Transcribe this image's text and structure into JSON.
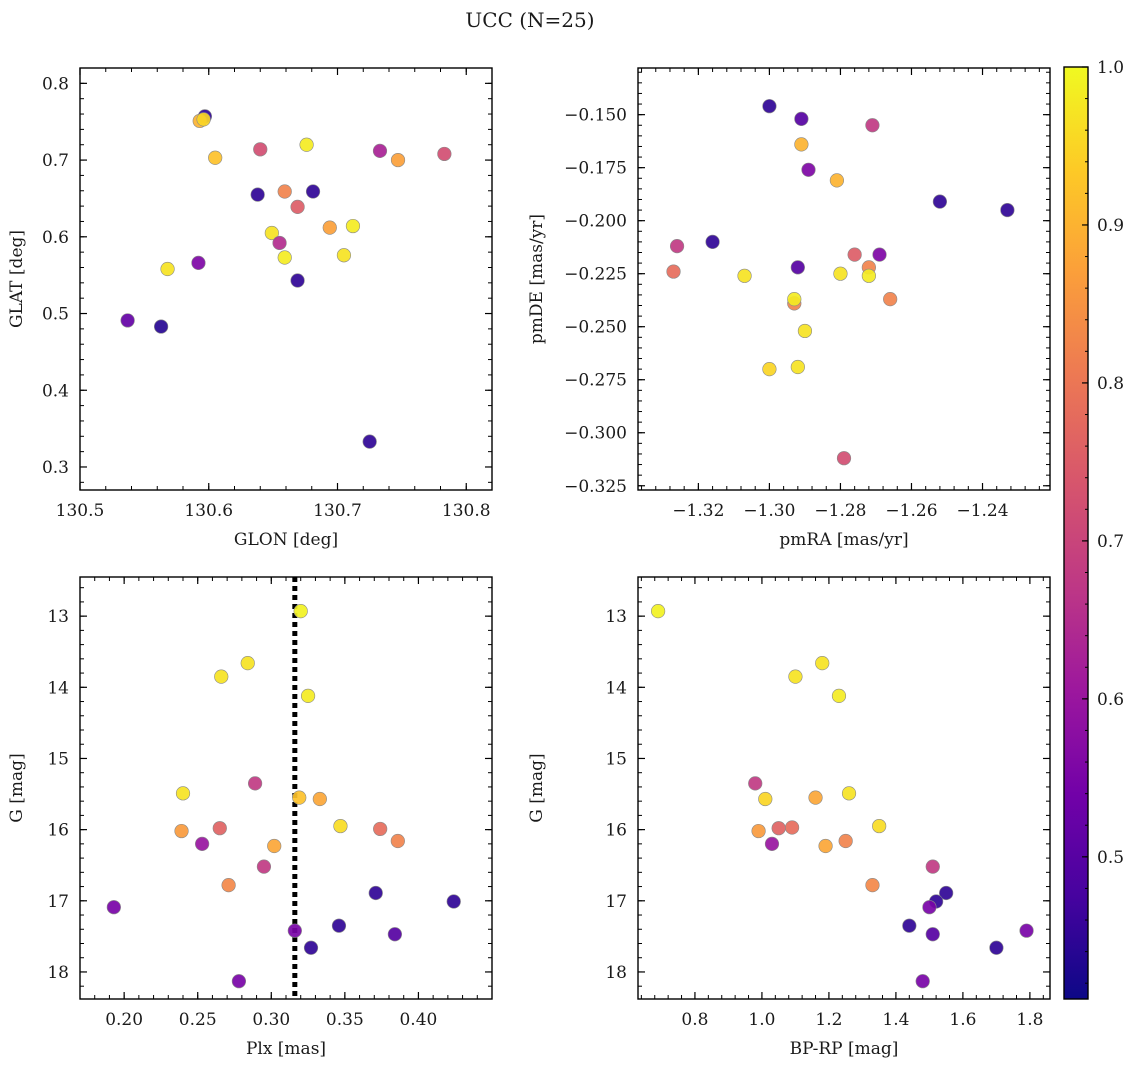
{
  "figure": {
    "title": "UCC (N=25)"
  },
  "colorbar": {
    "min": 0.41,
    "max": 1.0,
    "ticks": [
      0.5,
      0.6,
      0.7,
      0.8,
      0.9,
      1.0
    ],
    "tick_labels": [
      "0.5",
      "0.6",
      "0.7",
      "0.8",
      "0.9",
      "1.0"
    ],
    "colormap": "plasma"
  },
  "chart_data": [
    {
      "type": "scatter",
      "title": "",
      "xlabel": "GLON [deg]",
      "ylabel": "GLAT [deg]",
      "xlim": [
        130.5,
        130.82
      ],
      "ylim": [
        0.27,
        0.82
      ],
      "xticks": [
        130.5,
        130.6,
        130.7,
        130.8
      ],
      "xtick_labels": [
        "130.5",
        "130.6",
        "130.7",
        "130.8"
      ],
      "yticks": [
        0.3,
        0.4,
        0.5,
        0.6,
        0.7,
        0.8
      ],
      "ytick_labels": [
        "0.3",
        "0.4",
        "0.5",
        "0.6",
        "0.7",
        "0.8"
      ],
      "grid": false,
      "points": [
        {
          "x": 130.597,
          "y": 0.757,
          "c": 0.45
        },
        {
          "x": 130.593,
          "y": 0.751,
          "c": 0.9
        },
        {
          "x": 130.596,
          "y": 0.753,
          "c": 0.95
        },
        {
          "x": 130.605,
          "y": 0.703,
          "c": 0.92
        },
        {
          "x": 130.64,
          "y": 0.714,
          "c": 0.72
        },
        {
          "x": 130.676,
          "y": 0.72,
          "c": 0.98
        },
        {
          "x": 130.733,
          "y": 0.712,
          "c": 0.63
        },
        {
          "x": 130.747,
          "y": 0.7,
          "c": 0.87
        },
        {
          "x": 130.783,
          "y": 0.708,
          "c": 0.72
        },
        {
          "x": 130.638,
          "y": 0.655,
          "c": 0.45
        },
        {
          "x": 130.659,
          "y": 0.659,
          "c": 0.82
        },
        {
          "x": 130.681,
          "y": 0.659,
          "c": 0.45
        },
        {
          "x": 130.669,
          "y": 0.639,
          "c": 0.75
        },
        {
          "x": 130.694,
          "y": 0.612,
          "c": 0.87
        },
        {
          "x": 130.712,
          "y": 0.614,
          "c": 0.98
        },
        {
          "x": 130.649,
          "y": 0.605,
          "c": 0.97
        },
        {
          "x": 130.655,
          "y": 0.592,
          "c": 0.65
        },
        {
          "x": 130.659,
          "y": 0.573,
          "c": 0.98
        },
        {
          "x": 130.705,
          "y": 0.576,
          "c": 0.97
        },
        {
          "x": 130.568,
          "y": 0.558,
          "c": 0.97
        },
        {
          "x": 130.592,
          "y": 0.566,
          "c": 0.56
        },
        {
          "x": 130.669,
          "y": 0.543,
          "c": 0.45
        },
        {
          "x": 130.537,
          "y": 0.491,
          "c": 0.52
        },
        {
          "x": 130.563,
          "y": 0.483,
          "c": 0.44
        },
        {
          "x": 130.725,
          "y": 0.333,
          "c": 0.45
        }
      ]
    },
    {
      "type": "scatter",
      "title": "",
      "xlabel": "pmRA [mas/yr]",
      "ylabel": "pmDE [mas/yr]",
      "xlim": [
        -1.337,
        -1.221
      ],
      "ylim": [
        -0.327,
        -0.128
      ],
      "xticks": [
        -1.32,
        -1.3,
        -1.28,
        -1.26,
        -1.24
      ],
      "xtick_labels": [
        "−1.32",
        "−1.30",
        "−1.28",
        "−1.26",
        "−1.24"
      ],
      "yticks": [
        -0.325,
        -0.3,
        -0.275,
        -0.25,
        -0.225,
        -0.2,
        -0.175,
        -0.15
      ],
      "ytick_labels": [
        "−0.325",
        "−0.300",
        "−0.275",
        "−0.250",
        "−0.225",
        "−0.200",
        "−0.175",
        "−0.150"
      ],
      "grid": false,
      "points": [
        {
          "x": -1.3,
          "y": -0.146,
          "c": 0.45
        },
        {
          "x": -1.291,
          "y": -0.152,
          "c": 0.5
        },
        {
          "x": -1.271,
          "y": -0.155,
          "c": 0.68
        },
        {
          "x": -1.291,
          "y": -0.164,
          "c": 0.9
        },
        {
          "x": -1.289,
          "y": -0.176,
          "c": 0.56
        },
        {
          "x": -1.281,
          "y": -0.181,
          "c": 0.9
        },
        {
          "x": -1.252,
          "y": -0.191,
          "c": 0.45
        },
        {
          "x": -1.233,
          "y": -0.195,
          "c": 0.45
        },
        {
          "x": -1.316,
          "y": -0.21,
          "c": 0.45
        },
        {
          "x": -1.326,
          "y": -0.212,
          "c": 0.68
        },
        {
          "x": -1.276,
          "y": -0.216,
          "c": 0.75
        },
        {
          "x": -1.269,
          "y": -0.216,
          "c": 0.56
        },
        {
          "x": -1.292,
          "y": -0.222,
          "c": 0.5
        },
        {
          "x": -1.272,
          "y": -0.222,
          "c": 0.82
        },
        {
          "x": -1.327,
          "y": -0.224,
          "c": 0.78
        },
        {
          "x": -1.307,
          "y": -0.226,
          "c": 0.97
        },
        {
          "x": -1.28,
          "y": -0.225,
          "c": 0.97
        },
        {
          "x": -1.272,
          "y": -0.226,
          "c": 0.98
        },
        {
          "x": -1.266,
          "y": -0.237,
          "c": 0.82
        },
        {
          "x": -1.293,
          "y": -0.239,
          "c": 0.82
        },
        {
          "x": -1.293,
          "y": -0.237,
          "c": 0.98
        },
        {
          "x": -1.29,
          "y": -0.252,
          "c": 0.97
        },
        {
          "x": -1.3,
          "y": -0.27,
          "c": 0.95
        },
        {
          "x": -1.292,
          "y": -0.269,
          "c": 0.97
        },
        {
          "x": -1.279,
          "y": -0.312,
          "c": 0.72
        }
      ]
    },
    {
      "type": "scatter",
      "title": "",
      "xlabel": "Plx [mas]",
      "ylabel": "G [mag]",
      "xlim": [
        0.17,
        0.45
      ],
      "ylim": [
        18.38,
        12.45
      ],
      "yaxis_inverted": true,
      "xticks": [
        0.2,
        0.25,
        0.3,
        0.35,
        0.4
      ],
      "xtick_labels": [
        "0.20",
        "0.25",
        "0.30",
        "0.35",
        "0.40"
      ],
      "yticks": [
        13,
        14,
        15,
        16,
        17,
        18
      ],
      "ytick_labels": [
        "13",
        "14",
        "15",
        "16",
        "17",
        "18"
      ],
      "grid": false,
      "vline": {
        "x": 0.316,
        "style": "dotted",
        "color": "#000000"
      },
      "points": [
        {
          "x": 0.32,
          "y": 12.93,
          "c": 0.99
        },
        {
          "x": 0.284,
          "y": 13.66,
          "c": 0.97
        },
        {
          "x": 0.266,
          "y": 13.85,
          "c": 0.97
        },
        {
          "x": 0.325,
          "y": 14.12,
          "c": 0.98
        },
        {
          "x": 0.289,
          "y": 15.35,
          "c": 0.68
        },
        {
          "x": 0.24,
          "y": 15.49,
          "c": 0.97
        },
        {
          "x": 0.319,
          "y": 15.55,
          "c": 0.92
        },
        {
          "x": 0.333,
          "y": 15.57,
          "c": 0.88
        },
        {
          "x": 0.347,
          "y": 15.95,
          "c": 0.96
        },
        {
          "x": 0.265,
          "y": 15.98,
          "c": 0.76
        },
        {
          "x": 0.374,
          "y": 15.99,
          "c": 0.78
        },
        {
          "x": 0.239,
          "y": 16.02,
          "c": 0.86
        },
        {
          "x": 0.386,
          "y": 16.16,
          "c": 0.82
        },
        {
          "x": 0.253,
          "y": 16.2,
          "c": 0.6
        },
        {
          "x": 0.302,
          "y": 16.23,
          "c": 0.88
        },
        {
          "x": 0.295,
          "y": 16.52,
          "c": 0.68
        },
        {
          "x": 0.271,
          "y": 16.78,
          "c": 0.83
        },
        {
          "x": 0.371,
          "y": 16.89,
          "c": 0.45
        },
        {
          "x": 0.424,
          "y": 17.01,
          "c": 0.45
        },
        {
          "x": 0.193,
          "y": 17.09,
          "c": 0.55
        },
        {
          "x": 0.346,
          "y": 17.35,
          "c": 0.45
        },
        {
          "x": 0.316,
          "y": 17.42,
          "c": 0.55
        },
        {
          "x": 0.384,
          "y": 17.47,
          "c": 0.5
        },
        {
          "x": 0.327,
          "y": 17.66,
          "c": 0.45
        },
        {
          "x": 0.278,
          "y": 18.13,
          "c": 0.55
        }
      ]
    },
    {
      "type": "scatter",
      "title": "",
      "xlabel": "BP-RP [mag]",
      "ylabel": "G [mag]",
      "xlim": [
        0.63,
        1.86
      ],
      "ylim": [
        18.38,
        12.45
      ],
      "yaxis_inverted": true,
      "xticks": [
        0.8,
        1.0,
        1.2,
        1.4,
        1.6,
        1.8
      ],
      "xtick_labels": [
        "0.8",
        "1.0",
        "1.2",
        "1.4",
        "1.6",
        "1.8"
      ],
      "yticks": [
        13,
        14,
        15,
        16,
        17,
        18
      ],
      "ytick_labels": [
        "13",
        "14",
        "15",
        "16",
        "17",
        "18"
      ],
      "grid": false,
      "points": [
        {
          "x": 0.69,
          "y": 12.93,
          "c": 0.99
        },
        {
          "x": 1.18,
          "y": 13.66,
          "c": 0.97
        },
        {
          "x": 1.1,
          "y": 13.85,
          "c": 0.97
        },
        {
          "x": 1.23,
          "y": 14.12,
          "c": 0.98
        },
        {
          "x": 0.98,
          "y": 15.35,
          "c": 0.68
        },
        {
          "x": 1.26,
          "y": 15.49,
          "c": 0.97
        },
        {
          "x": 1.01,
          "y": 15.57,
          "c": 0.95
        },
        {
          "x": 1.16,
          "y": 15.55,
          "c": 0.88
        },
        {
          "x": 1.35,
          "y": 15.95,
          "c": 0.96
        },
        {
          "x": 1.05,
          "y": 15.98,
          "c": 0.76
        },
        {
          "x": 1.09,
          "y": 15.97,
          "c": 0.78
        },
        {
          "x": 0.99,
          "y": 16.02,
          "c": 0.86
        },
        {
          "x": 1.25,
          "y": 16.16,
          "c": 0.82
        },
        {
          "x": 1.03,
          "y": 16.2,
          "c": 0.6
        },
        {
          "x": 1.19,
          "y": 16.23,
          "c": 0.88
        },
        {
          "x": 1.51,
          "y": 16.52,
          "c": 0.68
        },
        {
          "x": 1.33,
          "y": 16.78,
          "c": 0.83
        },
        {
          "x": 1.55,
          "y": 16.89,
          "c": 0.45
        },
        {
          "x": 1.52,
          "y": 17.01,
          "c": 0.45
        },
        {
          "x": 1.5,
          "y": 17.09,
          "c": 0.55
        },
        {
          "x": 1.44,
          "y": 17.35,
          "c": 0.45
        },
        {
          "x": 1.79,
          "y": 17.42,
          "c": 0.55
        },
        {
          "x": 1.51,
          "y": 17.47,
          "c": 0.5
        },
        {
          "x": 1.7,
          "y": 17.66,
          "c": 0.45
        },
        {
          "x": 1.48,
          "y": 18.13,
          "c": 0.55
        }
      ]
    }
  ]
}
